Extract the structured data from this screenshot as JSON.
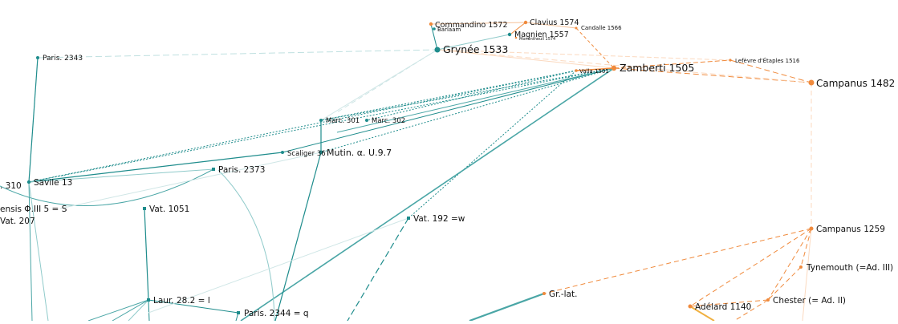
{
  "colors": {
    "greek": "#1e8c8c",
    "greek_light": "#8fcaca",
    "latin": "#f08a3c",
    "latin_light": "#f6c29a"
  },
  "nodes": {
    "commandino": "Commandino 1572",
    "barlaam": "Barlaam",
    "clavius": "Clavius 1574",
    "magnien": "Magnien 1557",
    "monantheuil": "Monantheuil 1574",
    "candalle": "Candalle 1566",
    "grynee": "Grynée 1533",
    "paris2343": "Paris. 2343",
    "lefevre": "Lefèvre d'Étaples 1516",
    "valla": "Valla 1501",
    "zamberti": "Zamberti 1505",
    "campanus1482": "Campanus 1482",
    "marc301": "Marc. 301",
    "marc302": "Marc. 302",
    "scaliger": "Scaliger 36",
    "mutin": "Mutin. α. U.9.7",
    "vat310": ". 310",
    "savile": "Savile 13",
    "paris2373": "Paris. 2373",
    "bononiensis": "ensis Φ.III 5 = S",
    "vat207": "Vat. 207",
    "vat1051": "Vat. 1051",
    "vat192": "Vat. 192 =w",
    "campanus1259": "Campanus 1259",
    "tynemouth": "Tynemouth (=Ad. III)",
    "grlat": "Gr.-lat.",
    "laur": "Laur. 28.2 = l",
    "chester": "Chester (= Ad. II)",
    "paris2344": "Paris. 2344 = q",
    "adelard": "Adélard 1140"
  }
}
